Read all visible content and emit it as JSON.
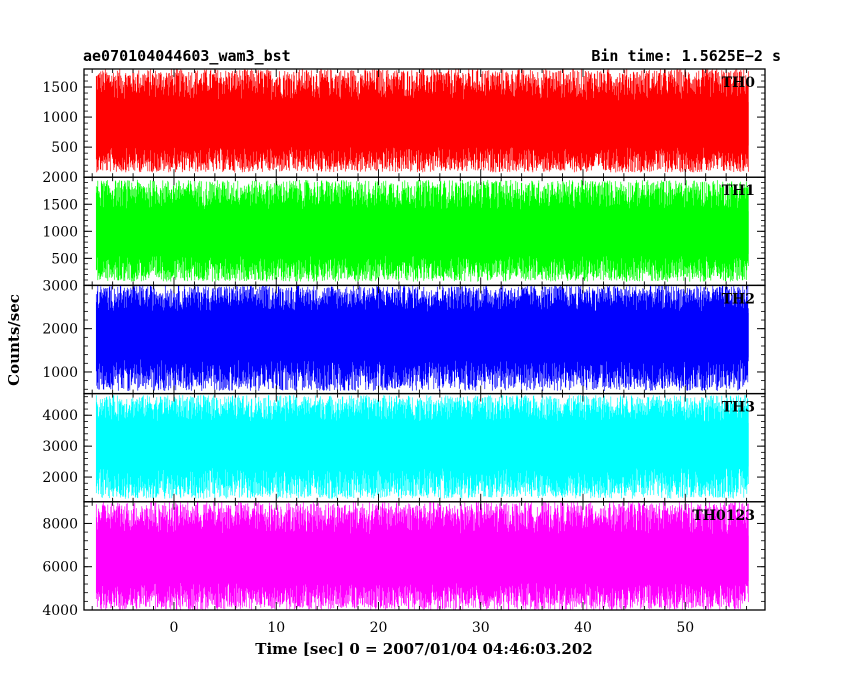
{
  "chart_data": {
    "type": "line",
    "title": "ae070104044603_wam3_bst",
    "subtitle": "Bin time: 1.5625E−2 s",
    "xlabel": "Time [sec] 0 = 2007/01/04 04:46:03.202",
    "ylabel": "Counts/sec",
    "xlim": [
      -8.8,
      57.8
    ],
    "x_ticks": [
      0,
      10,
      20,
      30,
      40,
      50
    ],
    "x_tick_labels": [
      "0",
      "10",
      "20",
      "30",
      "40",
      "50"
    ],
    "x_data_range": [
      -7.6,
      56.2
    ],
    "panels": [
      {
        "name": "TH0",
        "color": "#ff0000",
        "ylim": [
          0,
          1800
        ],
        "ticks": [
          500,
          1000,
          1500
        ],
        "tick_labels": [
          "500",
          "1000",
          "1500"
        ],
        "mean": 850,
        "low": 80,
        "high": 1800
      },
      {
        "name": "TH1",
        "color": "#00ff00",
        "ylim": [
          0,
          2000
        ],
        "ticks": [
          500,
          1000,
          1500,
          2000
        ],
        "tick_labels": [
          "500",
          "1000",
          "1500",
          "2000"
        ],
        "mean": 950,
        "low": 70,
        "high": 1950
      },
      {
        "name": "TH2",
        "color": "#0000ff",
        "ylim": [
          500,
          3000
        ],
        "ticks": [
          1000,
          2000,
          3000
        ],
        "tick_labels": [
          "1000",
          "2000",
          "3000"
        ],
        "mean": 1900,
        "low": 560,
        "high": 3000
      },
      {
        "name": "TH3",
        "color": "#00ffff",
        "ylim": [
          1200,
          4700
        ],
        "ticks": [
          2000,
          3000,
          4000
        ],
        "tick_labels": [
          "2000",
          "3000",
          "4000"
        ],
        "mean": 3100,
        "low": 1300,
        "high": 4650
      },
      {
        "name": "TH0123",
        "color": "#ff00ff",
        "ylim": [
          4000,
          9000
        ],
        "ticks": [
          4000,
          6000,
          8000
        ],
        "tick_labels": [
          "4000",
          "6000",
          "8000"
        ],
        "mean": 6300,
        "low": 4000,
        "high": 9000
      }
    ]
  }
}
